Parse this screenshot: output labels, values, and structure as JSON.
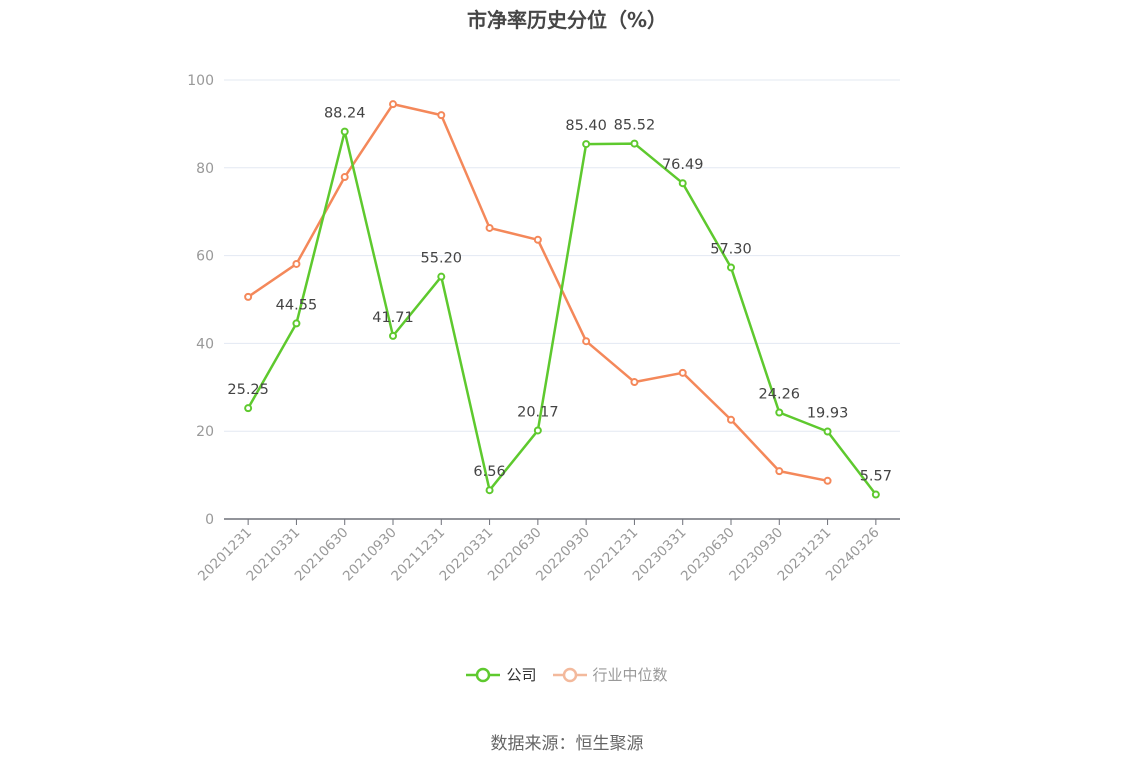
{
  "title": "市净率历史分位（%）",
  "source": "数据来源：恒生聚源",
  "legend": [
    {
      "label": "公司",
      "color": "#5ec92e",
      "text_color": "#333333"
    },
    {
      "label": "行业中位数",
      "color": "#f3b99c",
      "text_color": "#999999"
    }
  ],
  "chart_data": {
    "type": "line",
    "title": "市净率历史分位（%）",
    "xlabel": "",
    "ylabel": "",
    "ylim": [
      0,
      100
    ],
    "yticks": [
      0,
      20,
      40,
      60,
      80,
      100
    ],
    "grid": true,
    "legend_position": "bottom",
    "categories": [
      "20201231",
      "20210331",
      "20210630",
      "20210930",
      "20211231",
      "20220331",
      "20220630",
      "20220930",
      "20221231",
      "20230331",
      "20230630",
      "20230930",
      "20231231",
      "20240326"
    ],
    "series": [
      {
        "name": "公司",
        "color": "#5ec92e",
        "labels": true,
        "values": [
          25.25,
          44.55,
          88.24,
          41.71,
          55.2,
          6.56,
          20.17,
          85.4,
          85.52,
          76.49,
          57.3,
          24.26,
          19.93,
          5.57
        ]
      },
      {
        "name": "行业中位数",
        "color": "#f4885a",
        "labels": false,
        "values": [
          50.6,
          58.1,
          77.9,
          94.5,
          92.0,
          66.3,
          63.6,
          40.5,
          31.2,
          33.3,
          22.6,
          10.9,
          8.7,
          null
        ]
      }
    ]
  }
}
